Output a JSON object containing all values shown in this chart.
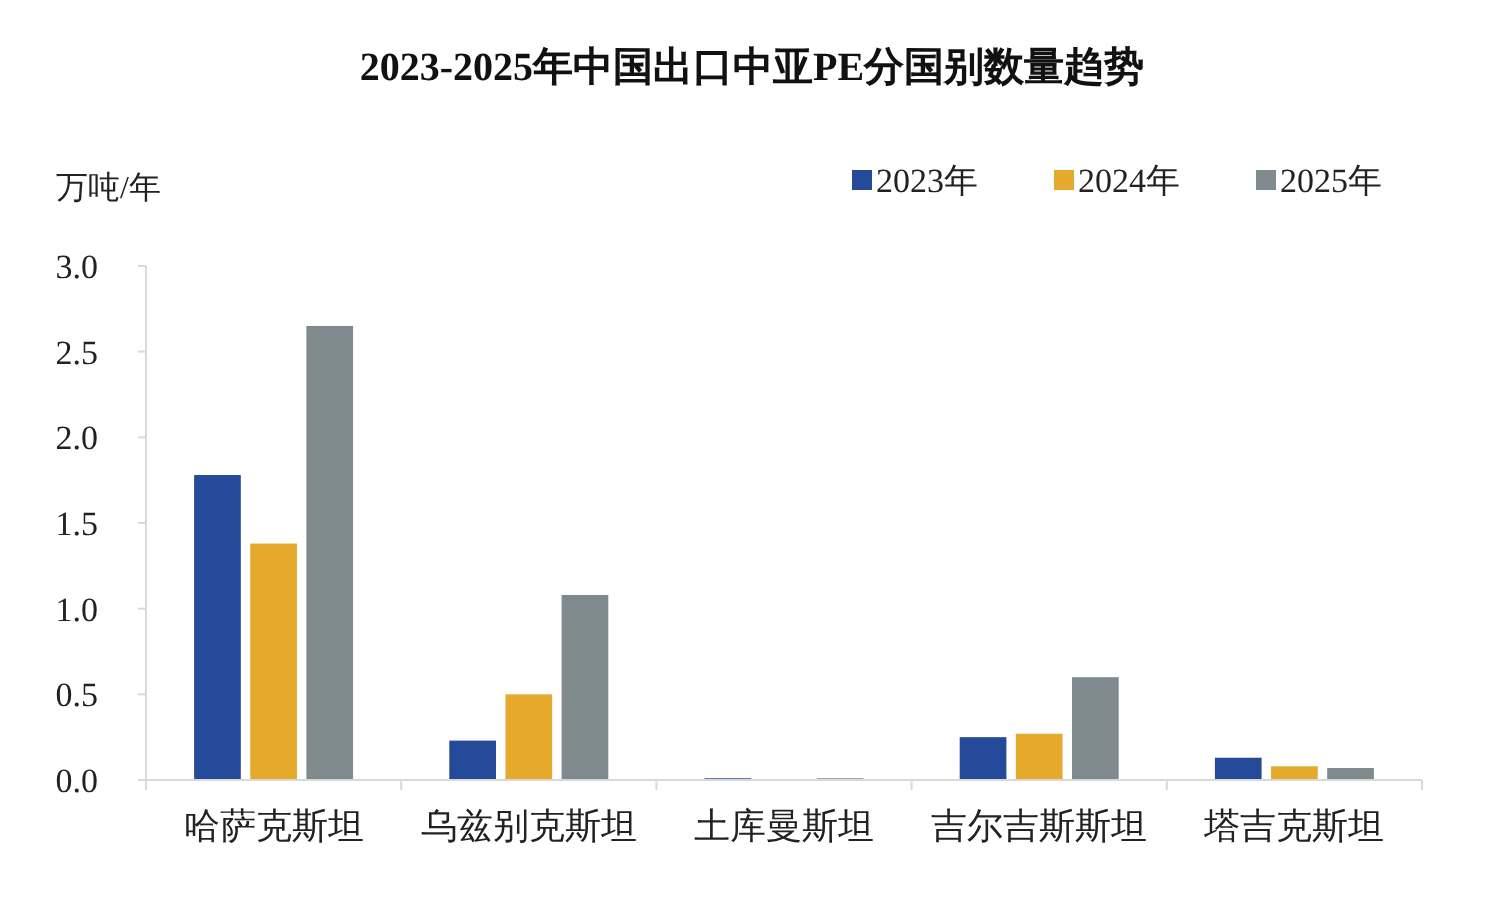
{
  "chart_data": {
    "type": "bar",
    "title": "2023-2025年中国出口中亚PE分国别数量趋势",
    "ylabel": "万吨/年",
    "categories": [
      "哈萨克斯坦",
      "乌兹别克斯坦",
      "土库曼斯坦",
      "吉尔吉斯斯坦",
      "塔吉克斯坦"
    ],
    "series": [
      {
        "name": "2023年",
        "color": "#254a99",
        "values": [
          1.78,
          0.23,
          0.01,
          0.25,
          0.13
        ]
      },
      {
        "name": "2024年",
        "color": "#e5a92c",
        "values": [
          1.38,
          0.5,
          0,
          0.27,
          0.08
        ]
      },
      {
        "name": "2025年",
        "color": "#7f8a8e",
        "values": [
          2.65,
          1.08,
          0.01,
          0.6,
          0.07
        ]
      }
    ],
    "ylim": [
      0,
      3
    ],
    "yticks": [
      {
        "value": 0,
        "label": "0.0"
      },
      {
        "value": 0.5,
        "label": "0.5"
      },
      {
        "value": 1,
        "label": "1.0"
      },
      {
        "value": 1.5,
        "label": "1.5"
      },
      {
        "value": 2,
        "label": "2.0"
      },
      {
        "value": 2.5,
        "label": "2.5"
      },
      {
        "value": 3,
        "label": "3.0"
      }
    ],
    "legend": "top right"
  }
}
